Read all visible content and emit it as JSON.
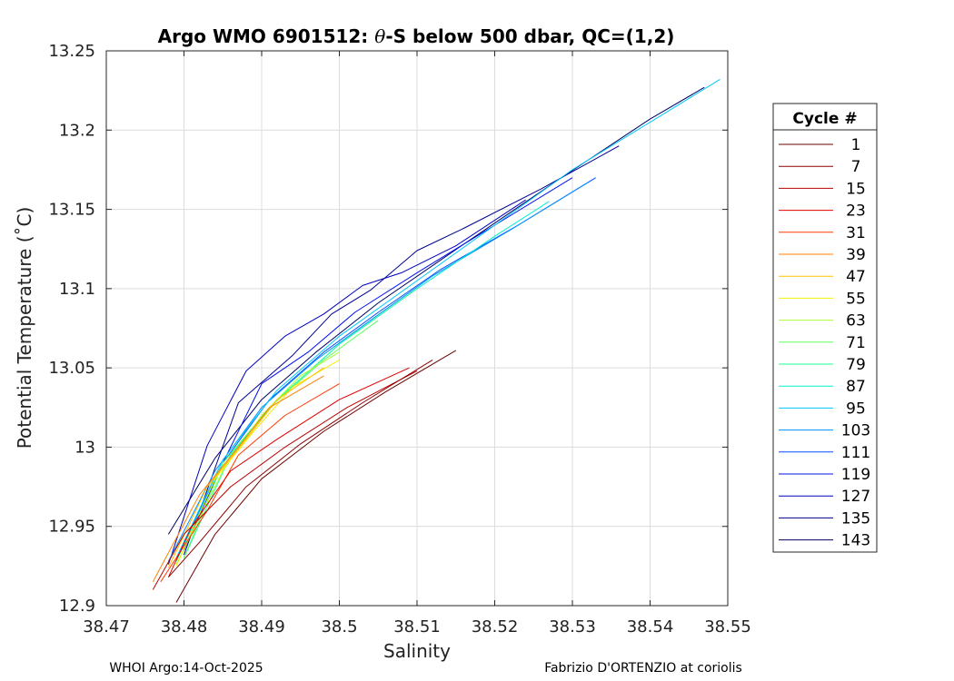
{
  "chart_data": {
    "type": "line",
    "title_prefix": "Argo WMO 6901512: ",
    "title_theta": "θ",
    "title_suffix": "-S below 500 dbar,  QC=(1,2)",
    "xlabel": "Salinity",
    "ylabel": "Potential Temperature (˚C)",
    "xlim": [
      38.47,
      38.55
    ],
    "ylim": [
      12.9,
      13.25
    ],
    "xticks": [
      38.47,
      38.48,
      38.49,
      38.5,
      38.51,
      38.52,
      38.53,
      38.54,
      38.55
    ],
    "xtick_labels": [
      "38.47",
      "38.48",
      "38.49",
      "38.5",
      "38.51",
      "38.52",
      "38.53",
      "38.54",
      "38.55"
    ],
    "yticks": [
      12.9,
      12.95,
      13.0,
      13.05,
      13.1,
      13.15,
      13.2,
      13.25
    ],
    "ytick_labels": [
      "12.9",
      "12.95",
      "13",
      "13.05",
      "13.1",
      "13.15",
      "13.2",
      "13.25"
    ],
    "grid": true,
    "legend": {
      "title": "Cycle #",
      "placement": "outside-right",
      "entries": [
        {
          "label": "1",
          "color": "#6b0000"
        },
        {
          "label": "7",
          "color": "#8e0000"
        },
        {
          "label": "15",
          "color": "#b80000"
        },
        {
          "label": "23",
          "color": "#e00000"
        },
        {
          "label": "31",
          "color": "#ff3a00"
        },
        {
          "label": "39",
          "color": "#ff8000"
        },
        {
          "label": "47",
          "color": "#ffc000"
        },
        {
          "label": "55",
          "color": "#f4f000"
        },
        {
          "label": "63",
          "color": "#a8ff30"
        },
        {
          "label": "71",
          "color": "#60ff60"
        },
        {
          "label": "79",
          "color": "#20ff9c"
        },
        {
          "label": "87",
          "color": "#00f0d0"
        },
        {
          "label": "95",
          "color": "#00c8ff"
        },
        {
          "label": "103",
          "color": "#0090ff"
        },
        {
          "label": "111",
          "color": "#0050ff"
        },
        {
          "label": "119",
          "color": "#0010f0"
        },
        {
          "label": "127",
          "color": "#0000c0"
        },
        {
          "label": "135",
          "color": "#000090"
        },
        {
          "label": "143",
          "color": "#000060"
        }
      ]
    },
    "series": [
      {
        "cycle": "143",
        "x": [
          38.547,
          38.54,
          38.528,
          38.516,
          38.505,
          38.497,
          38.49,
          38.484,
          38.478
        ],
        "y": [
          13.227,
          13.207,
          13.168,
          13.128,
          13.091,
          13.06,
          13.03,
          12.993,
          12.945
        ]
      },
      {
        "cycle": "135",
        "x": [
          38.536,
          38.526,
          38.516,
          38.51,
          38.504,
          38.499,
          38.494,
          38.487,
          38.48
        ],
        "y": [
          13.19,
          13.163,
          13.138,
          13.124,
          13.099,
          13.084,
          13.058,
          13.028,
          12.932
        ]
      },
      {
        "cycle": "127",
        "x": [
          38.524,
          38.515,
          38.508,
          38.503,
          38.498,
          38.493,
          38.488,
          38.483,
          38.478
        ],
        "y": [
          13.156,
          13.127,
          13.11,
          13.102,
          13.084,
          13.07,
          13.048,
          13.001,
          12.926
        ]
      },
      {
        "cycle": "119",
        "x": [
          38.53,
          38.52,
          38.51,
          38.502,
          38.496,
          38.49,
          38.485,
          38.48
        ],
        "y": [
          13.17,
          13.14,
          13.11,
          13.085,
          13.06,
          13.04,
          12.99,
          12.935
        ]
      },
      {
        "cycle": "111",
        "x": [
          38.533,
          38.523,
          38.513,
          38.505,
          38.498,
          38.491,
          38.485,
          38.479
        ],
        "y": [
          13.17,
          13.14,
          13.112,
          13.085,
          13.06,
          13.03,
          12.99,
          12.93
        ]
      },
      {
        "cycle": "103",
        "x": [
          38.532,
          38.522,
          38.512,
          38.504,
          38.497,
          38.49,
          38.484,
          38.478
        ],
        "y": [
          13.167,
          13.137,
          13.108,
          13.08,
          13.055,
          13.025,
          12.985,
          12.928
        ]
      },
      {
        "cycle": "95",
        "x": [
          38.549,
          38.54,
          38.53,
          38.52,
          38.51,
          38.5,
          38.492,
          38.485,
          38.479
        ],
        "y": [
          13.232,
          13.205,
          13.175,
          13.14,
          13.105,
          13.07,
          13.036,
          12.992,
          12.93
        ]
      },
      {
        "cycle": "87",
        "x": [
          38.527,
          38.52,
          38.51,
          38.5,
          38.492,
          38.485,
          38.479
        ],
        "y": [
          13.155,
          13.133,
          13.1,
          13.065,
          13.03,
          12.99,
          12.928
        ]
      },
      {
        "cycle": "79",
        "x": [
          38.51,
          38.5,
          38.492,
          38.486,
          38.48
        ],
        "y": [
          13.1,
          13.065,
          13.03,
          12.995,
          12.93
        ]
      },
      {
        "cycle": "71",
        "x": [
          38.505,
          38.498,
          38.491,
          38.485,
          38.48
        ],
        "y": [
          13.08,
          13.055,
          13.025,
          12.99,
          12.93
        ]
      },
      {
        "cycle": "63",
        "x": [
          38.5,
          38.495,
          38.49,
          38.485,
          38.479
        ],
        "y": [
          13.06,
          13.045,
          13.02,
          12.985,
          12.926
        ]
      },
      {
        "cycle": "55",
        "x": [
          38.5,
          38.494,
          38.489,
          38.484,
          38.479
        ],
        "y": [
          13.055,
          13.038,
          13.01,
          12.98,
          12.925
        ]
      },
      {
        "cycle": "47",
        "x": [
          38.498,
          38.492,
          38.488,
          38.483,
          38.478
        ],
        "y": [
          13.05,
          13.03,
          13.005,
          12.975,
          12.924
        ]
      },
      {
        "cycle": "39",
        "x": [
          38.498,
          38.491,
          38.487,
          38.482,
          38.476
        ],
        "y": [
          13.045,
          13.025,
          13.0,
          12.97,
          12.915
        ]
      },
      {
        "cycle": "31",
        "x": [
          38.5,
          38.493,
          38.487,
          38.483,
          38.477
        ],
        "y": [
          13.04,
          13.02,
          12.995,
          12.96,
          12.915
        ]
      },
      {
        "cycle": "23",
        "x": [
          38.509,
          38.5,
          38.492,
          38.486,
          38.481,
          38.478
        ],
        "y": [
          13.05,
          13.03,
          13.005,
          12.985,
          12.95,
          12.918
        ]
      },
      {
        "cycle": "15",
        "x": [
          38.51,
          38.501,
          38.493,
          38.486,
          38.48,
          38.476
        ],
        "y": [
          13.048,
          13.025,
          13.0,
          12.975,
          12.945,
          12.91
        ]
      },
      {
        "cycle": "7",
        "x": [
          38.512,
          38.503,
          38.495,
          38.488,
          38.482,
          38.478
        ],
        "y": [
          13.055,
          13.028,
          13.002,
          12.975,
          12.94,
          12.918
        ]
      },
      {
        "cycle": "1",
        "x": [
          38.515,
          38.506,
          38.498,
          38.49,
          38.484,
          38.479
        ],
        "y": [
          13.061,
          13.035,
          13.01,
          12.98,
          12.945,
          12.902
        ]
      }
    ]
  },
  "footer": {
    "left": "WHOI Argo:14-Oct-2025",
    "right": "Fabrizio D'ORTENZIO at coriolis"
  }
}
